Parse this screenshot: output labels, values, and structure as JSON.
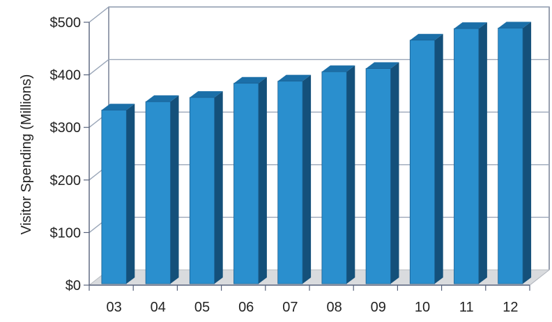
{
  "chart_data": {
    "type": "bar",
    "title": "",
    "xlabel": "",
    "ylabel": "Visitor Spending (Millions)",
    "categories": [
      "03",
      "04",
      "05",
      "06",
      "07",
      "08",
      "09",
      "10",
      "11",
      "12"
    ],
    "values": [
      333,
      349,
      357,
      384,
      388,
      406,
      412,
      466,
      488,
      489
    ],
    "ylim": [
      0,
      500
    ],
    "yticks": [
      0,
      100,
      200,
      300,
      400,
      500
    ],
    "ytick_labels": [
      "$0",
      "$100",
      "$200",
      "$300",
      "$400",
      "$500"
    ],
    "grid": true,
    "style": "3d",
    "colors": {
      "bar_front": "#2a8fce",
      "bar_side": "#14507a",
      "bar_top": "#1b6fa8",
      "grid": "#9aa6b8",
      "frame": "#55607a",
      "floor": "#d9dbde"
    }
  }
}
